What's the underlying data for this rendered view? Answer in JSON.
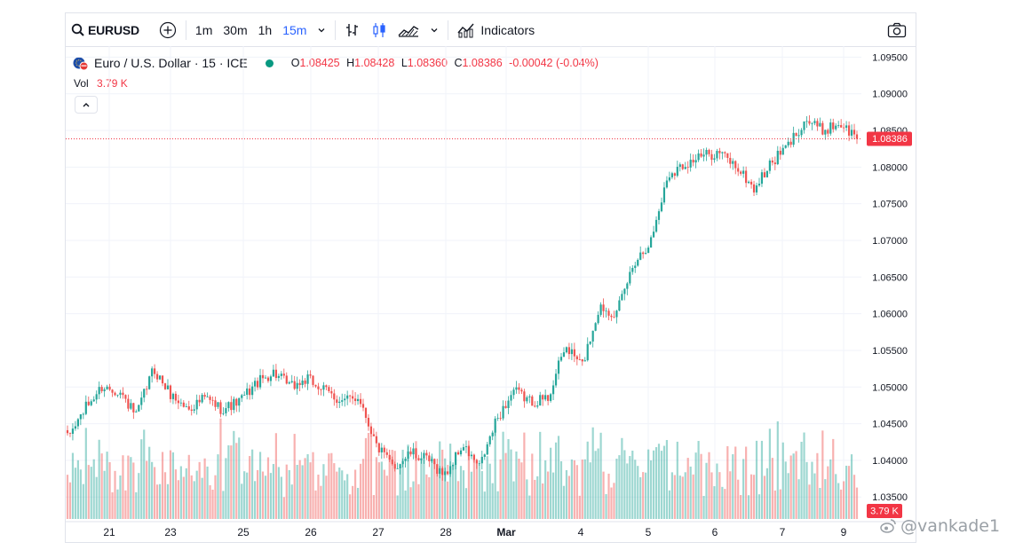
{
  "toolbar": {
    "symbol": "EURUSD",
    "intervals": [
      {
        "label": "1m",
        "active": false
      },
      {
        "label": "30m",
        "active": false
      },
      {
        "label": "1h",
        "active": false
      },
      {
        "label": "15m",
        "active": true
      }
    ],
    "indicators_label": "Indicators",
    "icons": [
      "search-icon",
      "add-symbol-icon",
      "chevron-down-icon",
      "bar-style-icon",
      "candle-style-icon",
      "area-style-icon",
      "chevron-down-icon",
      "indicators-icon",
      "camera-icon"
    ]
  },
  "legend": {
    "title": "Euro / U.S. Dollar · 15 · ICE",
    "o_label": "O",
    "o_value": "1.08425",
    "h_label": "H",
    "h_value": "1.08428",
    "l_label": "L",
    "l_value": "1.08360",
    "c_label": "C",
    "c_value": "1.08386",
    "change": "-0.00042 (-0.04%)",
    "vol_label": "Vol",
    "vol_value": "3.79 K"
  },
  "price_badge": "1.08386",
  "volume_badge": "3.79 K",
  "watermark": "@vankade1",
  "colors": {
    "up": "#26a69a",
    "down": "#ef5350",
    "accent": "#2962ff",
    "badge": "#f23645"
  },
  "chart_data": {
    "type": "candlestick",
    "title": "Euro / U.S. Dollar · 15 · ICE",
    "ylabel": "",
    "y_range": [
      1.032,
      1.0965
    ],
    "y_ticks": [
      "1.09500",
      "1.09000",
      "1.08500",
      "1.08000",
      "1.07500",
      "1.07000",
      "1.06500",
      "1.06000",
      "1.05500",
      "1.05000",
      "1.04500",
      "1.04000",
      "1.03500"
    ],
    "x_ticks": [
      "21",
      "23",
      "25",
      "26",
      "27",
      "28",
      "Mar",
      "4",
      "5",
      "6",
      "7",
      "9"
    ],
    "last_price": 1.08386,
    "grid": true,
    "price_path": [
      [
        "21",
        1.043
      ],
      [
        "21",
        1.047
      ],
      [
        "21",
        1.05
      ],
      [
        "23",
        1.0495
      ],
      [
        "23",
        1.046
      ],
      [
        "23",
        1.0525
      ],
      [
        "23",
        1.049
      ],
      [
        "25",
        1.047
      ],
      [
        "25",
        1.0485
      ],
      [
        "25",
        1.047
      ],
      [
        "25",
        1.048
      ],
      [
        "26",
        1.0505
      ],
      [
        "26",
        1.052
      ],
      [
        "26",
        1.05
      ],
      [
        "27",
        1.051
      ],
      [
        "27",
        1.0495
      ],
      [
        "27",
        1.048
      ],
      [
        "27",
        1.0487
      ],
      [
        "27",
        1.042
      ],
      [
        "28",
        1.039
      ],
      [
        "28",
        1.041
      ],
      [
        "28",
        1.04
      ],
      [
        "28",
        1.038
      ],
      [
        "Mar",
        1.042
      ],
      [
        "Mar",
        1.039
      ],
      [
        "4",
        1.0455
      ],
      [
        "4",
        1.0495
      ],
      [
        "4",
        1.048
      ],
      [
        "4",
        1.0485
      ],
      [
        "5",
        1.0555
      ],
      [
        "5",
        1.053
      ],
      [
        "5",
        1.061
      ],
      [
        "5",
        1.06
      ],
      [
        "5",
        1.067
      ],
      [
        "5",
        1.07
      ],
      [
        "6",
        1.079
      ],
      [
        "6",
        1.0805
      ],
      [
        "6",
        1.0815
      ],
      [
        "6",
        1.082
      ],
      [
        "7",
        1.08
      ],
      [
        "7",
        1.077
      ],
      [
        "7",
        1.0805
      ],
      [
        "7",
        1.083
      ],
      [
        "7",
        1.0865
      ],
      [
        "9",
        1.085
      ],
      [
        "9",
        1.086
      ],
      [
        "9",
        1.0839
      ]
    ],
    "volume_ylim": [
      0,
      15000
    ]
  }
}
